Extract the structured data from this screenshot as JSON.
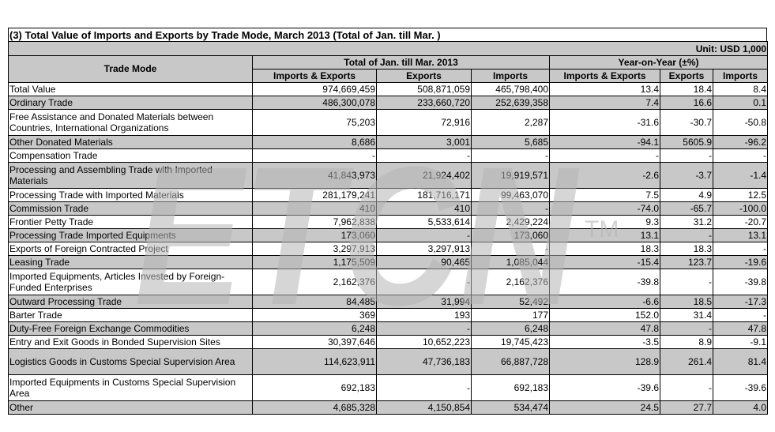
{
  "title": "(3) Total Value of Imports and Exports by Trade Mode, March 2013 (Total of Jan. till Mar. )",
  "unit": "Unit: USD 1,000",
  "header": {
    "trade_mode": "Trade Mode",
    "group_total": "Total of Jan. till Mar. 2013",
    "group_yoy": "Year-on-Year (±%)",
    "col_ie": "Imports & Exports",
    "col_ex": "Exports",
    "col_im": "Imports",
    "col_ie2": "Imports & Exports",
    "col_ex2": "Exports",
    "col_im2": "Imports"
  },
  "rows": [
    {
      "label": "Total Value",
      "ie": "974,669,459",
      "ex": "508,871,059",
      "im": "465,798,400",
      "yie": "13.4",
      "yex": "18.4",
      "yim": "8.4"
    },
    {
      "label": "Ordinary Trade",
      "ie": "486,300,078",
      "ex": "233,660,720",
      "im": "252,639,358",
      "yie": "7.4",
      "yex": "16.6",
      "yim": "0.1"
    },
    {
      "label": "Free Assistance and Donated Materials between Countries, International Organizations",
      "ie": "75,203",
      "ex": "72,916",
      "im": "2,287",
      "yie": "-31.6",
      "yex": "-30.7",
      "yim": "-50.8"
    },
    {
      "label": "Other Donated Materials",
      "ie": "8,686",
      "ex": "3,001",
      "im": "5,685",
      "yie": "-94.1",
      "yex": "5605.9",
      "yim": "-96.2"
    },
    {
      "label": "Compensation Trade",
      "ie": "-",
      "ex": "-",
      "im": "-",
      "yie": "-",
      "yex": "-",
      "yim": "-"
    },
    {
      "label": "Processing and Assembling Trade with Imported Materials",
      "ie": "41,843,973",
      "ex": "21,924,402",
      "im": "19,919,571",
      "yie": "-2.6",
      "yex": "-3.7",
      "yim": "-1.4"
    },
    {
      "label": "Processing Trade with Imported Materials",
      "ie": "281,179,241",
      "ex": "181,716,171",
      "im": "99,463,070",
      "yie": "7.5",
      "yex": "4.9",
      "yim": "12.5"
    },
    {
      "label": "Commission Trade",
      "ie": "410",
      "ex": "410",
      "im": "-",
      "yie": "-74.0",
      "yex": "-65.7",
      "yim": "-100.0"
    },
    {
      "label": "Frontier Petty Trade",
      "ie": "7,962,838",
      "ex": "5,533,614",
      "im": "2,429,224",
      "yie": "9.3",
      "yex": "31.2",
      "yim": "-20.7"
    },
    {
      "label": "Processing Trade Imported Equipments",
      "ie": "173,060",
      "ex": "-",
      "im": "173,060",
      "yie": "13.1",
      "yex": "-",
      "yim": "13.1"
    },
    {
      "label": "Exports of Foreign Contracted Project",
      "ie": "3,297,913",
      "ex": "3,297,913",
      "im": "-",
      "yie": "18.3",
      "yex": "18.3",
      "yim": "-"
    },
    {
      "label": "Leasing Trade",
      "ie": "1,175,509",
      "ex": "90,465",
      "im": "1,085,044",
      "yie": "-15.4",
      "yex": "123.7",
      "yim": "-19.6"
    },
    {
      "label": "Imported Equipments, Articles Invested by Foreign-Funded Enterprises",
      "ie": "2,162,376",
      "ex": "-",
      "im": "2,162,376",
      "yie": "-39.8",
      "yex": "-",
      "yim": "-39.8"
    },
    {
      "label": "Outward Processing Trade",
      "ie": "84,485",
      "ex": "31,994",
      "im": "52,492",
      "yie": "-6.6",
      "yex": "18.5",
      "yim": "-17.3"
    },
    {
      "label": "Barter Trade",
      "ie": "369",
      "ex": "193",
      "im": "177",
      "yie": "152.0",
      "yex": "31.4",
      "yim": "-"
    },
    {
      "label": "Duty-Free Foreign Exchange Commodities",
      "ie": "6,248",
      "ex": "-",
      "im": "6,248",
      "yie": "47.8",
      "yex": "-",
      "yim": "47.8"
    },
    {
      "label": "Entry and Exit Goods in Bonded Supervision Sites",
      "ie": "30,397,646",
      "ex": "10,652,223",
      "im": "19,745,423",
      "yie": "-3.5",
      "yex": "8.9",
      "yim": "-9.1"
    },
    {
      "label": "Logistics Goods in Customs Special Supervision Area",
      "ie": "114,623,911",
      "ex": "47,736,183",
      "im": "66,887,728",
      "yie": "128.9",
      "yex": "261.4",
      "yim": "81.4"
    },
    {
      "label": "Imported Equipments in Customs Special Supervision Area",
      "ie": "692,183",
      "ex": "-",
      "im": "692,183",
      "yie": "-39.6",
      "yex": "-",
      "yim": "-39.6"
    },
    {
      "label": "Other",
      "ie": "4,685,328",
      "ex": "4,150,854",
      "im": "534,474",
      "yie": "24.5",
      "yex": "27.7",
      "yim": "4.0"
    }
  ],
  "watermark": {
    "text": "ETCN",
    "mark": "TM",
    "color": "#b4b4b4"
  }
}
